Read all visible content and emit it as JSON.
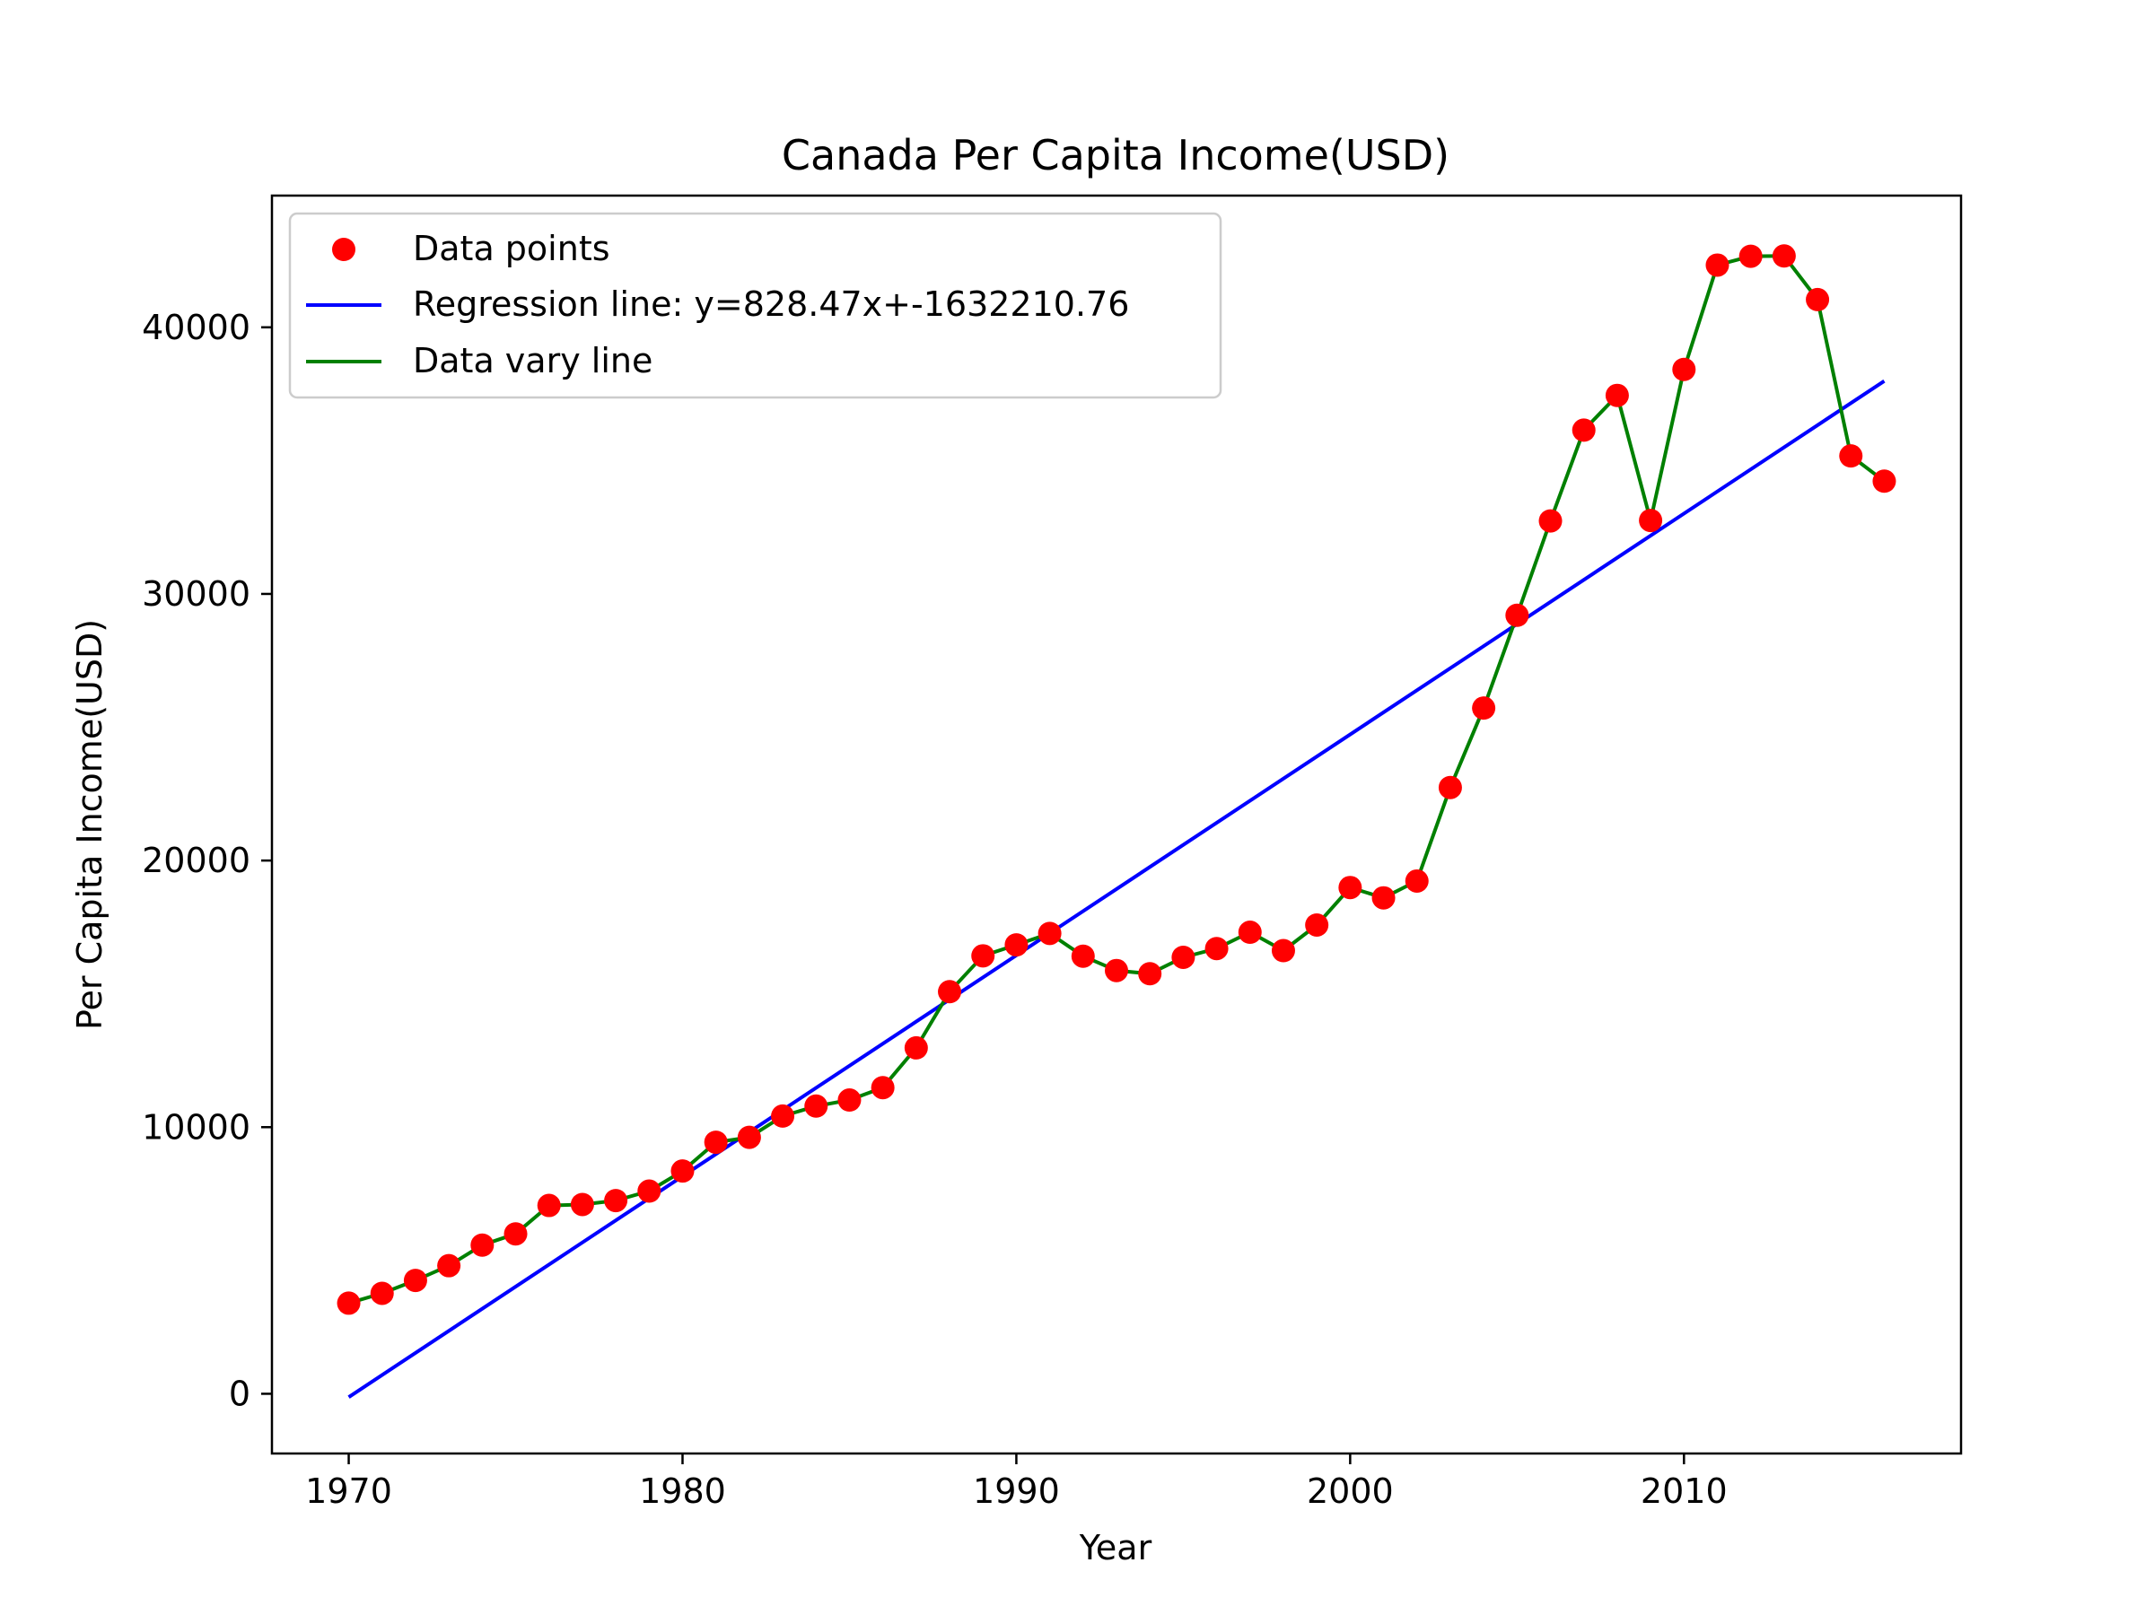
{
  "chart_data": {
    "type": "scatter",
    "title": "Canada Per Capita Income(USD)",
    "xlabel": "Year",
    "ylabel": "Per Capita Income(USD)",
    "xlim": [
      1967.7,
      2018.3
    ],
    "ylim": [
      -2240,
      44940
    ],
    "xticks": [
      1970,
      1980,
      1990,
      2000,
      2010
    ],
    "yticks": [
      0,
      10000,
      20000,
      30000,
      40000
    ],
    "grid": false,
    "legend_position": "upper-left",
    "x": [
      1970,
      1971,
      1972,
      1973,
      1974,
      1975,
      1976,
      1977,
      1978,
      1979,
      1980,
      1981,
      1982,
      1983,
      1984,
      1985,
      1986,
      1987,
      1988,
      1989,
      1990,
      1991,
      1992,
      1993,
      1994,
      1995,
      1996,
      1997,
      1998,
      1999,
      2000,
      2001,
      2002,
      2003,
      2004,
      2005,
      2006,
      2007,
      2008,
      2009,
      2010,
      2011,
      2012,
      2013,
      2014,
      2015,
      2016
    ],
    "y": [
      3399,
      3768,
      4251,
      4804,
      5576,
      5998,
      7063,
      7100,
      7247,
      7602,
      8355,
      9434,
      9619,
      10416,
      10790,
      11018,
      11482,
      12974,
      15081,
      16426,
      16838,
      17266,
      16412,
      15875,
      15755,
      16370,
      16699,
      17311,
      16622,
      17582,
      18988,
      18601,
      19232,
      22739,
      25719,
      29199,
      32738,
      36144,
      37446,
      32755,
      38420,
      42334,
      42665,
      42676,
      41040,
      35176,
      34229
    ],
    "series": [
      {
        "name": "Data points",
        "kind": "scatter",
        "color": "#ff0000"
      },
      {
        "name": "Regression line: y=828.47x+-1632210.76",
        "kind": "line",
        "color": "#0000ff",
        "slope": 828.47,
        "intercept": -1632210.76,
        "x_range": [
          1970,
          2016
        ]
      },
      {
        "name": "Data vary line",
        "kind": "line",
        "color": "#008000"
      }
    ]
  }
}
